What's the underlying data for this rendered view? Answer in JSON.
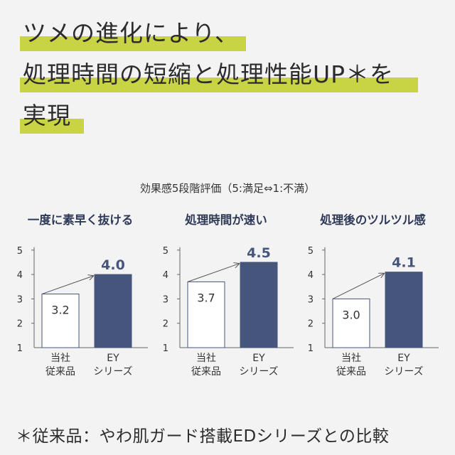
{
  "headline": {
    "lines": [
      "ツメの進化により、",
      "処理時間の短縮と処理性能UP＊を",
      "実現"
    ],
    "highlight_color": "#c8d444"
  },
  "subtitle": "効果感5段階評価（5:満足⇔1:不満）",
  "footnote": "＊従来品：やわ肌ガード搭載EDシリーズとの比較",
  "colors": {
    "navy": "#46557b",
    "outline": "#46557b",
    "title": "#2e3a58"
  },
  "chart_data": [
    {
      "type": "bar",
      "title": "一度に素早く抜ける",
      "categories": [
        "当社\n従来品",
        "EY\nシリーズ"
      ],
      "values": [
        3.2,
        4.0
      ],
      "value_labels": [
        "3.2",
        "4.0"
      ],
      "yticks": [
        "1",
        "2",
        "3",
        "4",
        "5"
      ],
      "ylim": [
        1,
        5
      ],
      "grid": false
    },
    {
      "type": "bar",
      "title": "処理時間が速い",
      "categories": [
        "当社\n従来品",
        "EY\nシリーズ"
      ],
      "values": [
        3.7,
        4.5
      ],
      "value_labels": [
        "3.7",
        "4.5"
      ],
      "yticks": [
        "1",
        "2",
        "3",
        "4",
        "5"
      ],
      "ylim": [
        1,
        5
      ],
      "grid": false
    },
    {
      "type": "bar",
      "title": "処理後のツルツル感",
      "categories": [
        "当社\n従来品",
        "EY\nシリーズ"
      ],
      "values": [
        3.0,
        4.1
      ],
      "value_labels": [
        "3.0",
        "4.1"
      ],
      "yticks": [
        "1",
        "2",
        "3",
        "4",
        "5"
      ],
      "ylim": [
        1,
        5
      ],
      "grid": false
    }
  ]
}
